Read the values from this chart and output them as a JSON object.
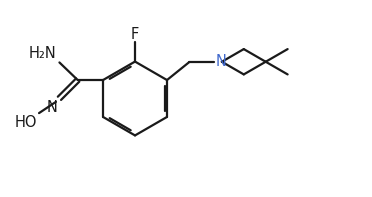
{
  "background_color": "#ffffff",
  "line_color": "#1a1a1a",
  "N_color": "#4169cd",
  "line_width": 1.6,
  "font_size": 10.5,
  "fig_width": 3.72,
  "fig_height": 1.97,
  "dpi": 100,
  "xlim": [
    0,
    10.5
  ],
  "ylim": [
    0,
    5.5
  ]
}
